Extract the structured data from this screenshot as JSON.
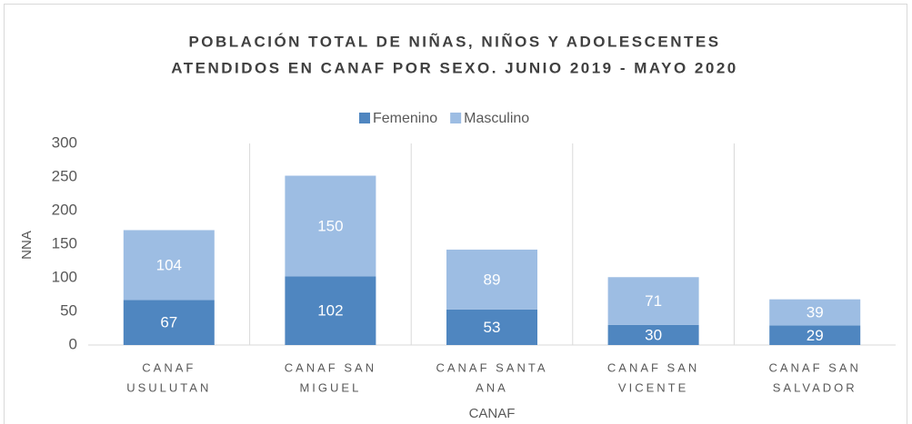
{
  "chart_data": {
    "type": "stacked_bar",
    "title": [
      "POBLACIÓN TOTAL DE NIÑAS, NIÑOS Y ADOLESCENTES",
      "ATENDIDOS EN CANAF POR SEXO. JUNIO 2019 - MAYO 2020"
    ],
    "x_label": "CANAF",
    "y_label": "NNA",
    "categories": [
      [
        "CANAF",
        "USULUTAN"
      ],
      [
        "CANAF SAN",
        "MIGUEL"
      ],
      [
        "CANAF SANTA",
        "ANA"
      ],
      [
        "CANAF SAN",
        "VICENTE"
      ],
      [
        "CANAF SAN",
        "SALVADOR"
      ]
    ],
    "series": [
      {
        "name": "Femenino",
        "color": "#4f86c0",
        "values": [
          67,
          102,
          53,
          30,
          29
        ]
      },
      {
        "name": "Masculino",
        "color": "#9dbde3",
        "values": [
          104,
          150,
          89,
          71,
          39
        ]
      }
    ],
    "ylim": [
      0,
      300
    ],
    "yticks": [
      0,
      50,
      100,
      150,
      200,
      250,
      300
    ],
    "legend": "top",
    "data_labels": true
  }
}
